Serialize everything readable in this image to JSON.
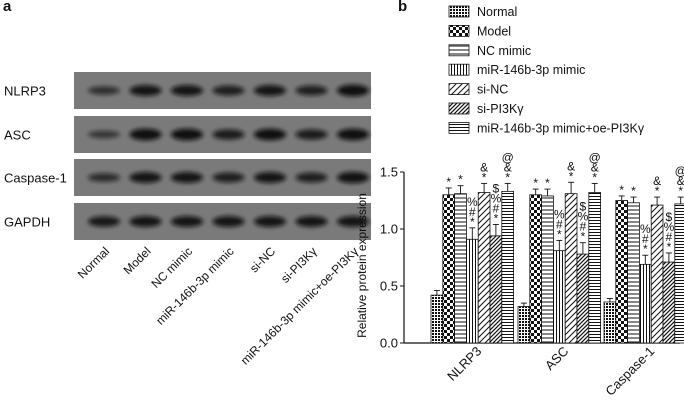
{
  "panels": {
    "a": "a",
    "b": "b"
  },
  "blot": {
    "rows": [
      "NLRP3",
      "ASC",
      "Caspase-1",
      "GAPDH"
    ],
    "lanes": [
      "Normal",
      "Model",
      "NC mimic",
      "miR-146b-3p mimic",
      "si-NC",
      "si-PI3Kγ",
      "miR-146b-3p mimic+oe-PI3Kγ"
    ],
    "band_strength": {
      "NLRP3": [
        0.45,
        0.85,
        0.85,
        0.7,
        0.85,
        0.7,
        0.95
      ],
      "ASC": [
        0.35,
        0.95,
        0.95,
        0.75,
        0.95,
        0.75,
        0.95
      ],
      "Caspase-1": [
        0.5,
        0.85,
        0.85,
        0.7,
        0.85,
        0.7,
        0.9
      ],
      "GAPDH": [
        0.8,
        0.85,
        0.85,
        0.85,
        0.85,
        0.85,
        0.85
      ]
    }
  },
  "chart_data": {
    "type": "bar",
    "ylabel": "Relative protein expression",
    "xlabel": "",
    "ylim": [
      0,
      1.5
    ],
    "yticks": [
      "0.0",
      "0.5",
      "1.0",
      "1.5"
    ],
    "categories": [
      "NLRP3",
      "ASC",
      "Caspase-1"
    ],
    "legend_position": "top-right",
    "series": [
      {
        "name": "Normal",
        "pattern": "dots",
        "values": [
          0.42,
          0.32,
          0.36
        ],
        "errors": [
          0.04,
          0.03,
          0.03
        ],
        "marks": [
          "",
          "",
          ""
        ]
      },
      {
        "name": "Model",
        "pattern": "check",
        "values": [
          1.3,
          1.3,
          1.25
        ],
        "errors": [
          0.06,
          0.05,
          0.04
        ],
        "marks": [
          "*",
          "*",
          "*"
        ]
      },
      {
        "name": "NC mimic",
        "pattern": "hlines",
        "values": [
          1.31,
          1.29,
          1.23
        ],
        "errors": [
          0.07,
          0.06,
          0.05
        ],
        "marks": [
          "*",
          "*",
          "*"
        ]
      },
      {
        "name": "miR-146b-3p mimic",
        "pattern": "vlines",
        "values": [
          0.91,
          0.81,
          0.69
        ],
        "errors": [
          0.1,
          0.09,
          0.08
        ],
        "marks": [
          "*#%",
          "*#%",
          "*#%"
        ]
      },
      {
        "name": "si-NC",
        "pattern": "diag",
        "values": [
          1.32,
          1.31,
          1.21
        ],
        "errors": [
          0.08,
          0.1,
          0.07
        ],
        "marks": [
          "*&",
          "*&",
          "*&"
        ]
      },
      {
        "name": "si-PI3Kγ",
        "pattern": "diagdense",
        "values": [
          0.94,
          0.78,
          0.71
        ],
        "errors": [
          0.1,
          0.1,
          0.08
        ],
        "marks": [
          "*#%$",
          "*#%$",
          "*#%$"
        ]
      },
      {
        "name": "miR-146b-3p mimic+oe-PI3Kγ",
        "pattern": "hlines2",
        "values": [
          1.33,
          1.32,
          1.22
        ],
        "errors": [
          0.07,
          0.08,
          0.06
        ],
        "marks": [
          "*&@",
          "*&@",
          "*&@"
        ]
      }
    ]
  }
}
